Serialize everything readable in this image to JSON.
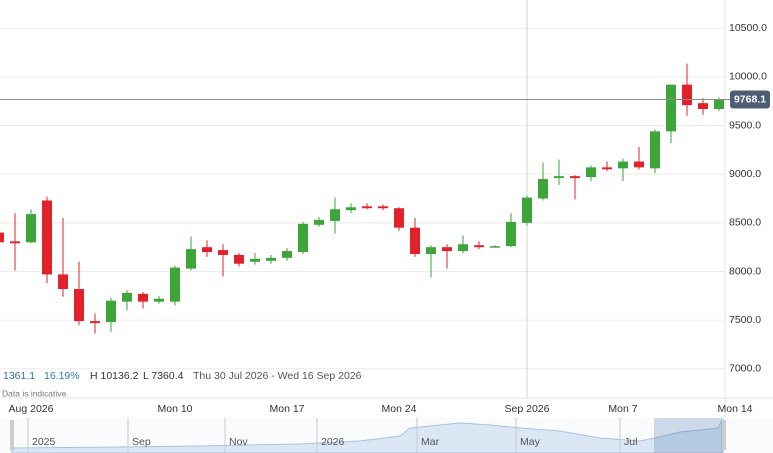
{
  "chart_data": {
    "type": "candlestick",
    "categories": [
      null,
      null,
      "Aug 2026",
      null,
      null,
      null,
      null,
      null,
      null,
      null,
      null,
      "Mon 10",
      null,
      null,
      null,
      null,
      null,
      null,
      "Mon 17",
      null,
      null,
      null,
      null,
      null,
      null,
      "Mon 24",
      null,
      null,
      null,
      null,
      null,
      null,
      null,
      "Sep 2026",
      null,
      null,
      null,
      null,
      null,
      "Mon 7",
      null,
      null,
      null,
      null,
      null,
      null,
      "Mon 14"
    ],
    "open": [
      8400,
      8310,
      8300,
      8730,
      7970,
      7820,
      7490,
      7480,
      7690,
      7770,
      7690,
      7690,
      8030,
      8250,
      8220,
      8170,
      8100,
      8110,
      8140,
      8200,
      8480,
      8520,
      8630,
      8670,
      8670,
      8650,
      8450,
      8180,
      8250,
      8210,
      8270,
      8260,
      8260,
      8500,
      8750,
      8960,
      8980,
      8970,
      9070,
      9060,
      9130,
      9060,
      9440,
      9920,
      9730,
      9670,
      null
    ],
    "high": [
      8420,
      8600,
      8640,
      8770,
      8550,
      8100,
      7570,
      7730,
      7810,
      7790,
      7750,
      8060,
      8360,
      8320,
      8280,
      8190,
      8190,
      8170,
      8240,
      8510,
      8560,
      8760,
      8700,
      8700,
      8690,
      8660,
      8550,
      8270,
      8280,
      8370,
      8310,
      8270,
      8600,
      8780,
      9120,
      9150,
      8990,
      9090,
      9130,
      9160,
      9280,
      9460,
      9920,
      10136.2,
      9780,
      9790,
      null
    ],
    "low": [
      8280,
      8010,
      8290,
      7880,
      7740,
      7450,
      7360.4,
      7380,
      7600,
      7620,
      7670,
      7650,
      8010,
      8150,
      7950,
      8050,
      8070,
      8080,
      8110,
      8180,
      8460,
      8390,
      8600,
      8640,
      8630,
      8420,
      8150,
      7940,
      8030,
      8190,
      8230,
      8250,
      8250,
      8470,
      8730,
      8890,
      8740,
      8930,
      9030,
      8930,
      9050,
      9010,
      9320,
      9600,
      9610,
      9650,
      null
    ],
    "close": [
      8300,
      8290,
      8590,
      7970,
      7820,
      7490,
      7470,
      7700,
      7780,
      7690,
      7720,
      8040,
      8230,
      8200,
      8170,
      8080,
      8130,
      8140,
      8210,
      8490,
      8530,
      8640,
      8660,
      8650,
      8650,
      8450,
      8180,
      8250,
      8210,
      8280,
      8250,
      8260,
      8510,
      8760,
      8950,
      8980,
      8960,
      9070,
      9050,
      9130,
      9070,
      9440,
      9920,
      9710,
      9670,
      9768.1,
      null
    ],
    "up_color": "#3ea53a",
    "down_color": "#e0232b",
    "ylim": [
      6700,
      10790
    ],
    "yticks": [
      {
        "value": 7000,
        "label": "7000.0"
      },
      {
        "value": 7500,
        "label": "7500.0"
      },
      {
        "value": 8000,
        "label": "8000.0"
      },
      {
        "value": 8500,
        "label": "8500.0"
      },
      {
        "value": 9000,
        "label": "9000.0"
      },
      {
        "value": 9500,
        "label": "9500.0"
      },
      {
        "value": 10000,
        "label": "10000.0"
      },
      {
        "value": 10500,
        "label": "10500.0"
      }
    ],
    "grid": true,
    "last_price": 9768.1,
    "stats": {
      "change": "1361.1",
      "change_pct": "16.19%",
      "high": "H 10136.2",
      "low": "L 7360.4",
      "range": "Thu 30 Jul 2026 - Wed 16 Sep 2026"
    },
    "note": "Data is indicative"
  },
  "navigator": {
    "labels": [
      "2025",
      "Sep",
      "Nov",
      "2026",
      "Mar",
      "May",
      "Jul"
    ]
  }
}
